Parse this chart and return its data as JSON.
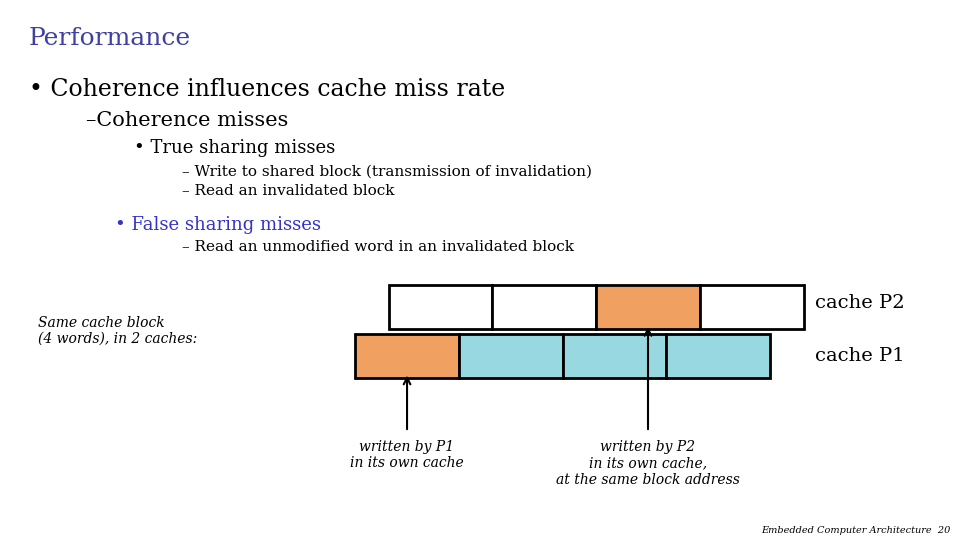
{
  "title": "Performance",
  "title_color": "#4040a0",
  "title_fontsize": 18,
  "bg_color": "#ffffff",
  "bullet1": "• Coherence influences cache miss rate",
  "bullet1_fontsize": 17,
  "sub1": "–Coherence misses",
  "sub1_fontsize": 15,
  "sub2": "• True sharing misses",
  "sub2_fontsize": 13,
  "sub3a": "– Write to shared block (transmission of invalidation)",
  "sub3b": "– Read an invalidated block",
  "sub3_fontsize": 11,
  "bullet2": "• False sharing misses",
  "bullet2_color": "#3333cc",
  "bullet2_fontsize": 13,
  "sub4": "– Read an unmodified word in an invalidated block",
  "sub4_fontsize": 11,
  "diagram_label": "Same cache block\n(4 words), in 2 caches:",
  "diagram_label_fontsize": 10,
  "cache_p2_label": "cache P2",
  "cache_p1_label": "cache P1",
  "cache_label_fontsize": 14,
  "arrow1_label": "written by P1\nin its own cache",
  "arrow2_label": "written by P2\nin its own cache,\nat the same block address",
  "annotation_fontsize": 10,
  "orange_color": "#f0a060",
  "cyan_color": "#98d8e0",
  "white_color": "#ffffff",
  "border_color": "#000000",
  "footer_text": "Embedded Computer Architecture  20",
  "footer_fontsize": 7
}
